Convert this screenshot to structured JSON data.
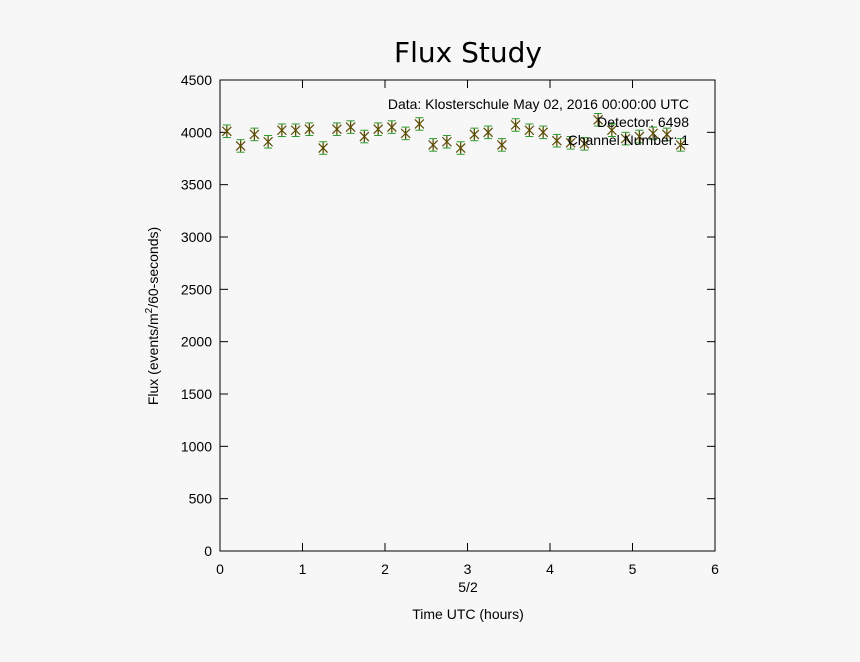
{
  "chart_data": {
    "type": "scatter",
    "title": "Flux Study",
    "xlabel": "Time UTC (hours)",
    "ylabel": "Flux (events/m",
    "ylabel_sup": "2",
    "ylabel_tail": "/60-seconds)",
    "date_label": "5/2",
    "xlim": [
      0,
      6
    ],
    "ylim": [
      0,
      4500
    ],
    "xticks": [
      0,
      1,
      2,
      3,
      4,
      5,
      6
    ],
    "yticks": [
      0,
      500,
      1000,
      1500,
      2000,
      2500,
      3000,
      3500,
      4000,
      4500
    ],
    "annotations": [
      "Data: Klosterschule May 02, 2016 00:00:00 UTC",
      "Detector: 6498",
      "Channel Number: 1"
    ],
    "colors": {
      "marker": "#5a4a00",
      "errorbar": "#2e9a2e",
      "frame": "#000000"
    },
    "series": [
      {
        "x": [
          0.083,
          0.25,
          0.417,
          0.583,
          0.75,
          0.917,
          1.083,
          1.25,
          1.417,
          1.583,
          1.75,
          1.917,
          2.083,
          2.25,
          2.417,
          2.583,
          2.75,
          2.917,
          3.083,
          3.25,
          3.417,
          3.583,
          3.75,
          3.917,
          4.083,
          4.25,
          4.417,
          4.583,
          4.75,
          4.917,
          5.083,
          5.25,
          5.417,
          5.583
        ],
        "y": [
          4010,
          3870,
          3980,
          3910,
          4020,
          4020,
          4030,
          3850,
          4030,
          4050,
          3960,
          4030,
          4050,
          3990,
          4080,
          3880,
          3910,
          3850,
          3980,
          4000,
          3880,
          4070,
          4020,
          4000,
          3920,
          3900,
          3890,
          4120,
          4020,
          3940,
          3960,
          3990,
          3980,
          3880
        ],
        "yerr": [
          60,
          60,
          60,
          60,
          60,
          60,
          60,
          60,
          60,
          60,
          60,
          60,
          60,
          60,
          60,
          60,
          60,
          60,
          60,
          60,
          60,
          60,
          60,
          60,
          60,
          60,
          60,
          60,
          60,
          60,
          60,
          60,
          60,
          60
        ]
      }
    ]
  }
}
